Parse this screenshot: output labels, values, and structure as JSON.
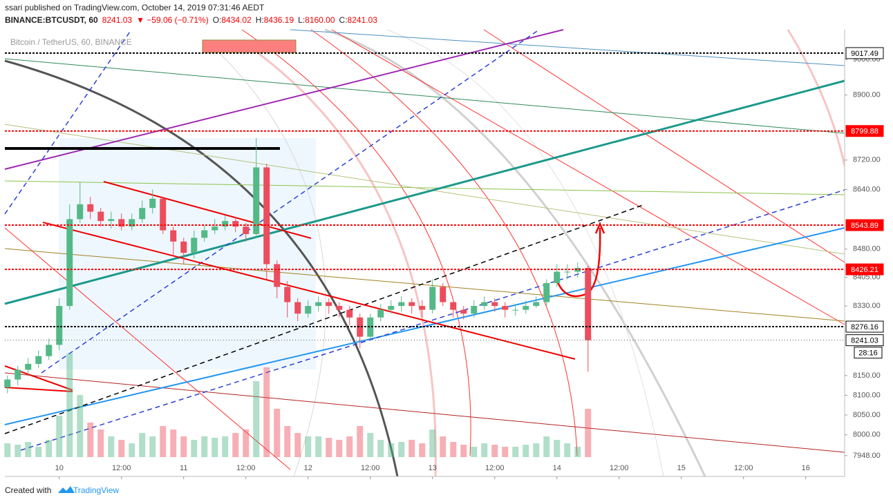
{
  "header": {
    "line1": "ssari published on TradingView.com, October 14, 2019 07:31:46 AEDT",
    "symbol": "BINANCE:BTCUSDT, 60",
    "last": "8241.03",
    "change": "▼ −59.06 (−0.71%)",
    "ohlc": [
      {
        "k": "O:",
        "v": "8434.02"
      },
      {
        "k": "H:",
        "v": "8436.19"
      },
      {
        "k": "L:",
        "v": "8160.00"
      },
      {
        "k": "C:",
        "v": "8241.03"
      }
    ]
  },
  "chart_data": {
    "type": "candlestick",
    "title": "Bitcoin / TetherUS, 60, BINANCE",
    "log_scale": true,
    "grid": false,
    "up_color": "#53b987",
    "down_color": "#eb4d5c",
    "xlim": [
      -10.5,
      151.5
    ],
    "ylim": [
      7934,
      9084
    ],
    "xticks": [
      {
        "value": 0,
        "label": "10"
      },
      {
        "value": 12,
        "label": "12:00"
      },
      {
        "value": 24,
        "label": "11"
      },
      {
        "value": 36,
        "label": "12:00"
      },
      {
        "value": 48,
        "label": "12"
      },
      {
        "value": 60,
        "label": "12:00"
      },
      {
        "value": 72,
        "label": "13"
      },
      {
        "value": 84,
        "label": "12:00"
      },
      {
        "value": 96,
        "label": "14"
      },
      {
        "value": 108,
        "label": "12:00"
      },
      {
        "value": 120,
        "label": "15"
      },
      {
        "value": 132,
        "label": "12:00"
      },
      {
        "value": 144,
        "label": "16"
      }
    ],
    "yticks": [
      {
        "value": 9000,
        "label": "9000.00"
      },
      {
        "value": 8900,
        "label": "8900.00"
      },
      {
        "value": 8720,
        "label": "8720.00"
      },
      {
        "value": 8640,
        "label": "8640.00"
      },
      {
        "value": 8480,
        "label": "8480.00"
      },
      {
        "value": 8405,
        "label": "8405.00"
      },
      {
        "value": 8330,
        "label": "8330.00"
      },
      {
        "value": 8150,
        "label": "8150.00"
      },
      {
        "value": 8100,
        "label": "8100.00"
      },
      {
        "value": 8050,
        "label": "8050.00"
      },
      {
        "value": 8000,
        "label": "8000.00"
      },
      {
        "value": 7948,
        "label": "7948.00"
      }
    ],
    "x": [
      -10,
      -8,
      -6,
      -4,
      -2,
      0,
      2,
      4,
      6,
      8,
      10,
      12,
      14,
      16,
      18,
      20,
      22,
      24,
      26,
      28,
      30,
      32,
      34,
      36,
      38,
      40,
      42,
      44,
      46,
      48,
      50,
      52,
      54,
      56,
      58,
      60,
      62,
      64,
      66,
      68,
      70,
      72,
      74,
      76,
      78,
      80,
      82,
      84,
      86,
      88,
      90,
      92,
      94,
      96,
      98,
      100,
      102
    ],
    "open": [
      8120,
      8140,
      8165,
      8180,
      8200,
      8229,
      8330,
      8560,
      8600,
      8580,
      8555,
      8560,
      8540,
      8560,
      8590,
      8615,
      8530,
      8500,
      8470,
      8510,
      8530,
      8540,
      8555,
      8540,
      8520,
      8700,
      8440,
      8380,
      8340,
      8310,
      8330,
      8340,
      8330,
      8320,
      8300,
      8250,
      8300,
      8320,
      8330,
      8340,
      8330,
      8320,
      8380,
      8340,
      8320,
      8310,
      8330,
      8340,
      8330,
      8320,
      8320,
      8330,
      8340,
      8390,
      8420,
      8420,
      8430
    ],
    "high": [
      8150,
      8175,
      8195,
      8215,
      8245,
      8350,
      8600,
      8660,
      8620,
      8590,
      8580,
      8575,
      8575,
      8610,
      8640,
      8620,
      8540,
      8510,
      8530,
      8545,
      8560,
      8570,
      8565,
      8550,
      8780,
      8710,
      8450,
      8395,
      8350,
      8345,
      8355,
      8350,
      8340,
      8330,
      8310,
      8310,
      8335,
      8345,
      8355,
      8350,
      8345,
      8400,
      8390,
      8340,
      8330,
      8345,
      8355,
      8350,
      8340,
      8335,
      8345,
      8355,
      8400,
      8440,
      8440,
      8445,
      8436
    ],
    "low": [
      8105,
      8125,
      8150,
      8170,
      8190,
      8215,
      8320,
      8550,
      8560,
      8540,
      8535,
      8530,
      8530,
      8550,
      8575,
      8520,
      8460,
      8440,
      8455,
      8500,
      8520,
      8530,
      8525,
      8500,
      8510,
      8400,
      8350,
      8300,
      8290,
      8300,
      8315,
      8310,
      8300,
      8280,
      8220,
      8240,
      8290,
      8310,
      8315,
      8310,
      8300,
      8310,
      8330,
      8300,
      8295,
      8300,
      8320,
      8315,
      8300,
      8305,
      8310,
      8325,
      8330,
      8380,
      8400,
      8405,
      8160
    ],
    "close": [
      8140,
      8165,
      8180,
      8200,
      8229,
      8330,
      8560,
      8600,
      8580,
      8555,
      8560,
      8540,
      8560,
      8590,
      8615,
      8530,
      8500,
      8470,
      8510,
      8530,
      8540,
      8555,
      8540,
      8520,
      8700,
      8440,
      8380,
      8340,
      8310,
      8330,
      8340,
      8330,
      8320,
      8300,
      8250,
      8300,
      8320,
      8330,
      8340,
      8330,
      8320,
      8380,
      8340,
      8320,
      8310,
      8330,
      8340,
      8330,
      8320,
      8320,
      8330,
      8340,
      8390,
      8420,
      8420,
      8430,
      8241
    ],
    "volume": [
      20,
      18,
      22,
      15,
      25,
      60,
      150,
      90,
      50,
      40,
      30,
      25,
      20,
      35,
      30,
      45,
      40,
      30,
      25,
      30,
      28,
      30,
      35,
      40,
      110,
      130,
      70,
      45,
      35,
      30,
      30,
      28,
      25,
      30,
      45,
      35,
      25,
      20,
      22,
      25,
      20,
      40,
      30,
      22,
      18,
      15,
      20,
      18,
      15,
      15,
      18,
      20,
      30,
      25,
      20,
      15,
      70
    ],
    "price_lines": [
      {
        "value": 9017.49,
        "color": "#000000"
      },
      {
        "value": 8799.88,
        "color": "#ff0000"
      },
      {
        "value": 8543.89,
        "color": "#ff0000"
      },
      {
        "value": 8426.21,
        "color": "#ff0000"
      },
      {
        "value": 8276.16,
        "color": "#000000"
      },
      {
        "value": 8241.03,
        "color": "#555555"
      }
    ],
    "countdown": "28:16"
  },
  "footer": {
    "text": "Created with",
    "brand": "TradingView"
  }
}
